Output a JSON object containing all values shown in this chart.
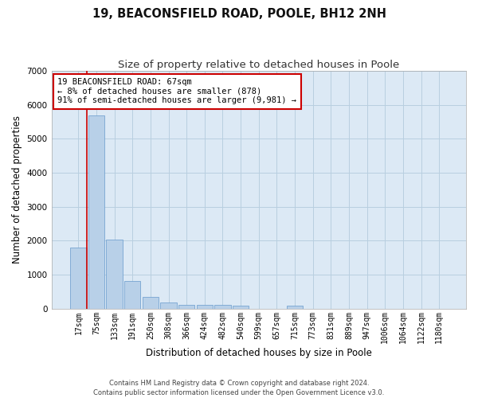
{
  "title": "19, BEACONSFIELD ROAD, POOLE, BH12 2NH",
  "subtitle": "Size of property relative to detached houses in Poole",
  "xlabel": "Distribution of detached houses by size in Poole",
  "ylabel": "Number of detached properties",
  "bar_labels": [
    "17sqm",
    "75sqm",
    "133sqm",
    "191sqm",
    "250sqm",
    "308sqm",
    "366sqm",
    "424sqm",
    "482sqm",
    "540sqm",
    "599sqm",
    "657sqm",
    "715sqm",
    "773sqm",
    "831sqm",
    "889sqm",
    "947sqm",
    "1006sqm",
    "1064sqm",
    "1122sqm",
    "1180sqm"
  ],
  "bar_values": [
    1800,
    5700,
    2020,
    800,
    340,
    185,
    110,
    100,
    100,
    75,
    0,
    0,
    80,
    0,
    0,
    0,
    0,
    0,
    0,
    0,
    0
  ],
  "bar_color": "#b8d0e8",
  "bar_edge_color": "#6699cc",
  "ylim": [
    0,
    7000
  ],
  "yticks": [
    0,
    1000,
    2000,
    3000,
    4000,
    5000,
    6000,
    7000
  ],
  "annotation_title": "19 BEACONSFIELD ROAD: 67sqm",
  "annotation_line1": "← 8% of detached houses are smaller (878)",
  "annotation_line2": "91% of semi-detached houses are larger (9,981) →",
  "annotation_box_color": "#ffffff",
  "annotation_box_edge": "#cc0000",
  "red_line_color": "#cc0000",
  "footer1": "Contains HM Land Registry data © Crown copyright and database right 2024.",
  "footer2": "Contains public sector information licensed under the Open Government Licence v3.0.",
  "background_color": "#ffffff",
  "axes_bg_color": "#dce9f5",
  "grid_color": "#b8cfe0",
  "title_fontsize": 10.5,
  "subtitle_fontsize": 9.5,
  "axis_label_fontsize": 8.5,
  "tick_fontsize": 7,
  "annot_fontsize": 7.5,
  "footer_fontsize": 6
}
